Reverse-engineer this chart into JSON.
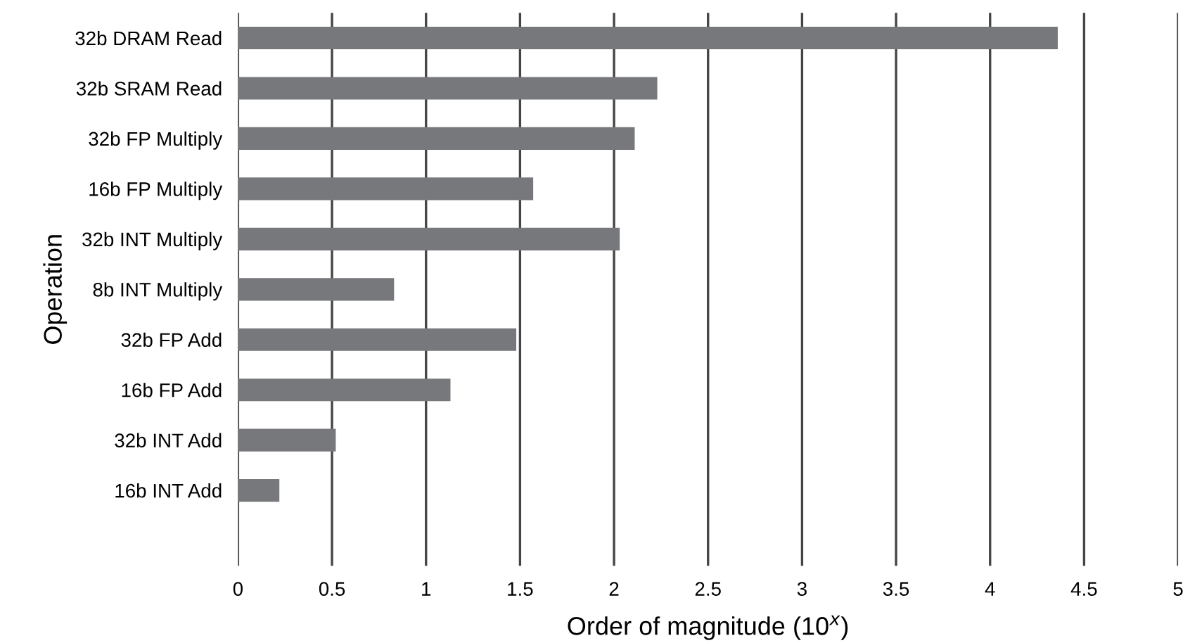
{
  "chart_data": {
    "type": "bar",
    "orientation": "horizontal",
    "categories": [
      "32b DRAM Read",
      "32b SRAM Read",
      "32b FP Multiply",
      "16b FP Multiply",
      "32b INT Multiply",
      "8b INT Multiply",
      "32b FP Add",
      "16b FP Add",
      "32b INT Add",
      "16b INT Add"
    ],
    "values": [
      4.36,
      2.23,
      2.11,
      1.57,
      2.03,
      0.83,
      1.48,
      1.13,
      0.52,
      0.22
    ],
    "color": "#77787b",
    "xlabel": "Order of magnitude (10$^{x}$)",
    "ylabel": "Operation",
    "xlim": [
      0,
      5
    ],
    "xticks": [
      0,
      0.5,
      1,
      1.5,
      2,
      2.5,
      3,
      3.5,
      4,
      4.5,
      5
    ],
    "grid": "x",
    "legend": false
  }
}
